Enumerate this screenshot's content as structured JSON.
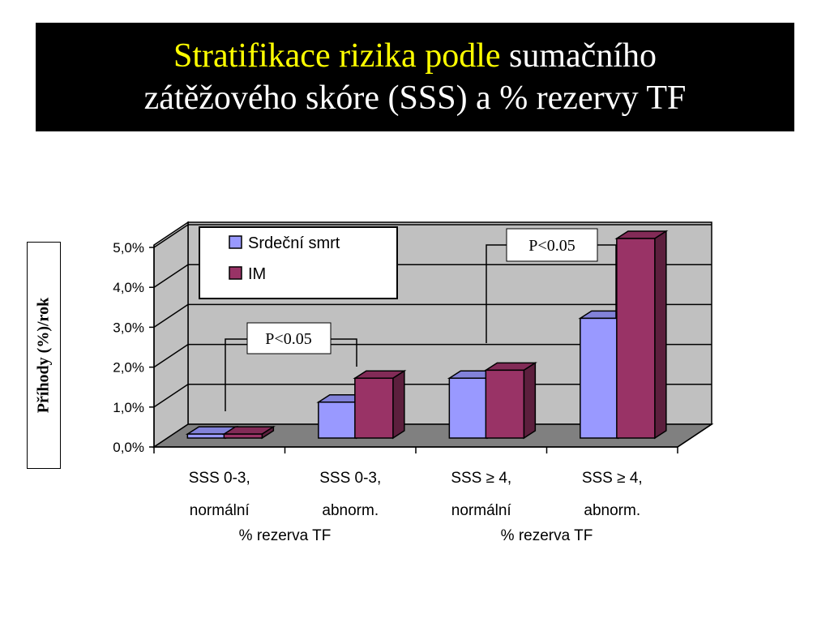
{
  "title": {
    "line1_highlight": "Stratifikace rizika podle",
    "line1_rest": " sumačního",
    "line2": "zátěžového skóre (SSS) a % rezervy TF"
  },
  "colors": {
    "title_bg": "#000000",
    "title_highlight": "#ffff00",
    "title_text": "#ffffff",
    "series_death": "#9999ff",
    "series_im": "#993366",
    "wall": "#c0c0c0",
    "floor": "#808080"
  },
  "chart_data": {
    "type": "bar",
    "three_d": true,
    "ylabel": "Příhody (%)/rok",
    "ylim": [
      0,
      5
    ],
    "yticks": [
      "0,0%",
      "1,0%",
      "2,0%",
      "3,0%",
      "4,0%",
      "5,0%"
    ],
    "grid": true,
    "legend_position": "top-left",
    "categories": [
      [
        "SSS 0-3,",
        "normální"
      ],
      [
        "SSS 0-3,",
        "abnorm."
      ],
      [
        "SSS ≥ 4,",
        "normální"
      ],
      [
        "SSS ≥ 4,",
        "abnorm."
      ]
    ],
    "group_labels": [
      "% rezerva TF",
      "% rezerva TF"
    ],
    "series": [
      {
        "name": "Srdeční smrt",
        "values": [
          0.1,
          0.9,
          1.5,
          3.0
        ]
      },
      {
        "name": "IM",
        "values": [
          0.1,
          1.5,
          1.7,
          5.0
        ]
      }
    ],
    "annotations": [
      "P<0.05",
      "P<0.05"
    ]
  }
}
